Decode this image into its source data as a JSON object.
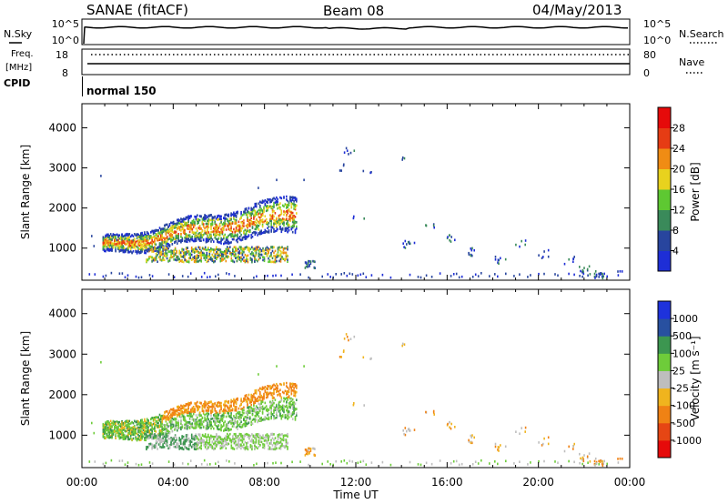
{
  "header": {
    "station": "SANAE (fitACF)",
    "beam": "Beam 08",
    "date": "04/May/2013"
  },
  "status_panels": {
    "nsky_label": "N.Sky",
    "nsky_ticks": [
      "10^5",
      "10^0"
    ],
    "nsearch_label": "N.Search",
    "nsearch_ticks": [
      "10^5",
      "10^0"
    ],
    "freq_label_1": "Freq.",
    "freq_label_2": "[MHz]",
    "freq_ticks": [
      "18",
      "8"
    ],
    "nave_label": "Nave",
    "nave_ticks": [
      "80",
      "0"
    ],
    "cpid_label": "CPID",
    "cpid_value": "normal 150"
  },
  "chart_data": [
    {
      "type": "heatmap",
      "name": "power",
      "ylabel": "Slant Range [km]",
      "yticks": [
        1000,
        2000,
        3000,
        4000
      ],
      "ylim": [
        200,
        4600
      ],
      "xlim": [
        0,
        24
      ],
      "colorbar_label": "Power [dB]",
      "colorbar_ticks": [
        "4",
        "8",
        "12",
        "16",
        "20",
        "24",
        "28"
      ],
      "colors": [
        "#1e2ed6",
        "#28459e",
        "#3a8a5a",
        "#5ec832",
        "#e8d21e",
        "#f08c14",
        "#e63c14",
        "#e60a0a"
      ]
    },
    {
      "type": "heatmap",
      "name": "velocity",
      "ylabel": "Slant Range [km]",
      "yticks": [
        1000,
        2000,
        3000,
        4000
      ],
      "ylim": [
        200,
        4600
      ],
      "xlim": [
        0,
        24
      ],
      "xlabel": "Time UT",
      "xticks": [
        "00:00",
        "04:00",
        "08:00",
        "12:00",
        "16:00",
        "20:00",
        "00:00"
      ],
      "colorbar_label": "Velocity [m s⁻¹]",
      "colorbar_ticks": [
        "1000",
        "500",
        "100",
        "25",
        "-25",
        "-100",
        "-500",
        "-1000"
      ],
      "colors": [
        "#1e32dc",
        "#2850a0",
        "#3c9650",
        "#6ecc3a",
        "#bebebe",
        "#f0b41e",
        "#f08214",
        "#e64614",
        "#e60a0a"
      ]
    }
  ]
}
